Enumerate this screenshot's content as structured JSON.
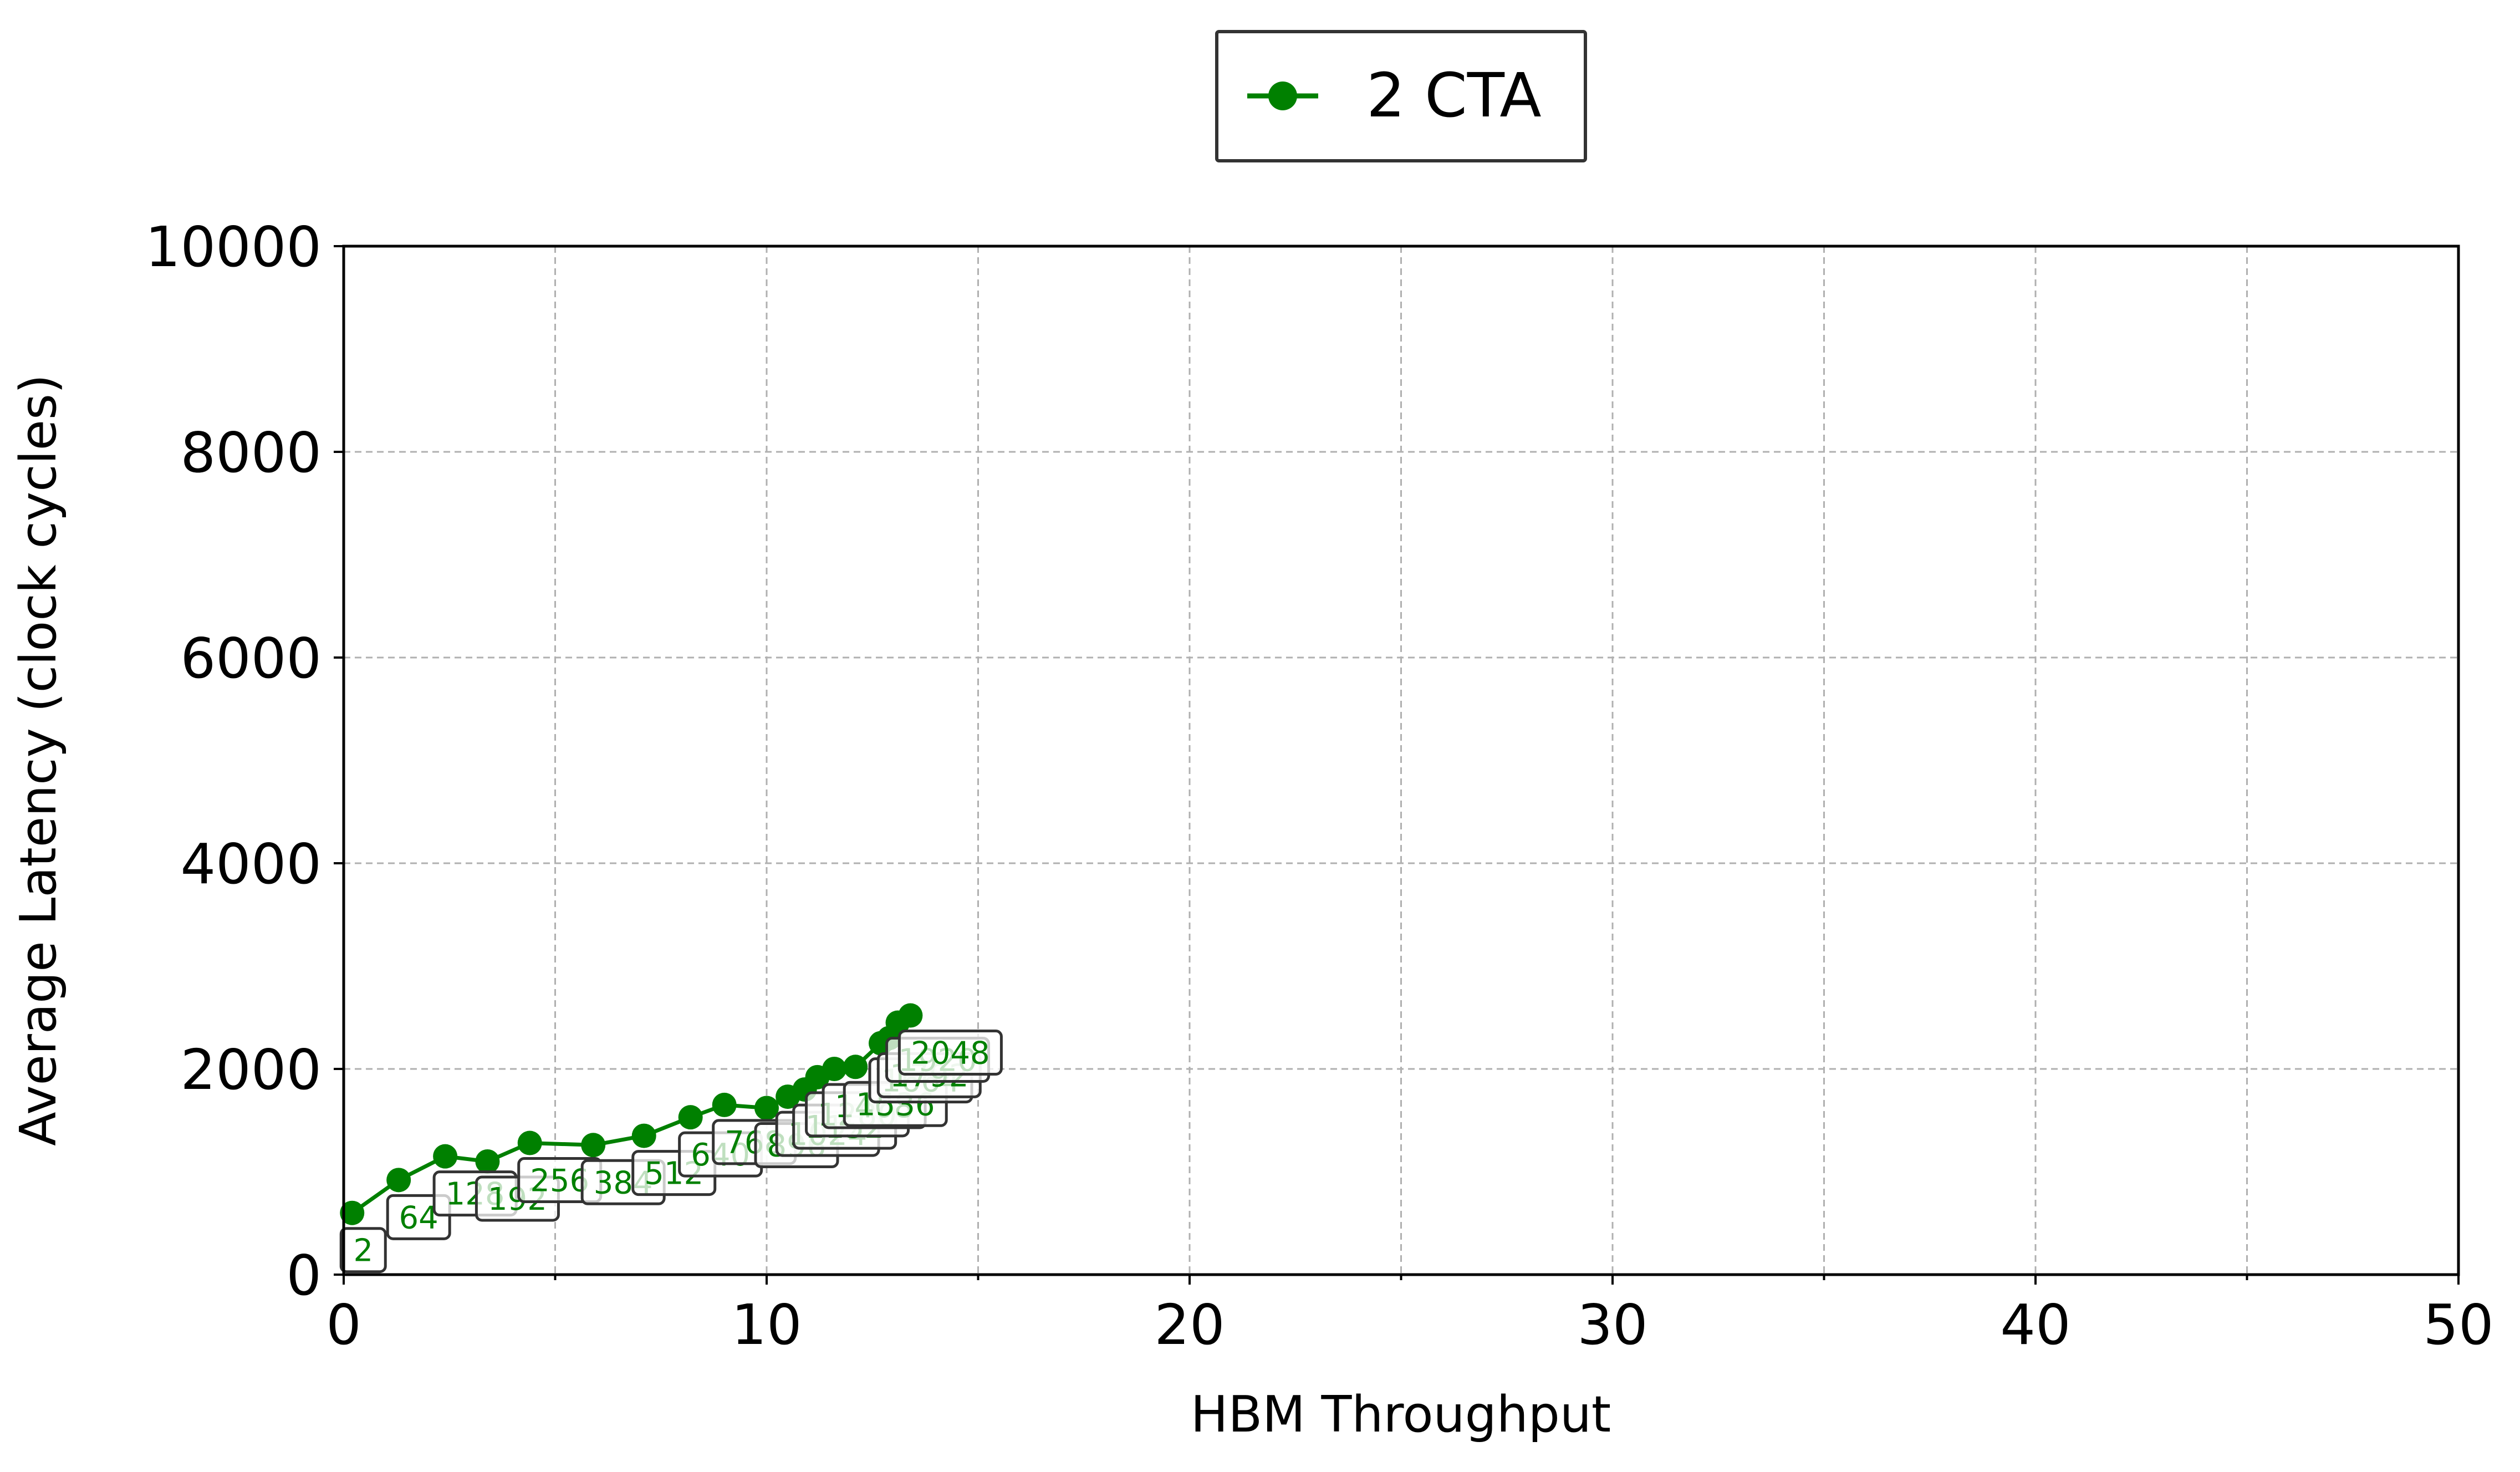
{
  "chart_data": {
    "type": "line",
    "title": "",
    "xlabel": "HBM Throughput",
    "ylabel": "Average Latency (clock cycles)",
    "xlim": [
      0,
      50
    ],
    "ylim": [
      0,
      10000
    ],
    "x_ticks": [
      0,
      10,
      20,
      30,
      40,
      50
    ],
    "y_ticks": [
      0,
      2000,
      4000,
      6000,
      8000,
      10000
    ],
    "x_tick_labels": [
      "0",
      "10",
      "20",
      "30",
      "40",
      "50"
    ],
    "y_tick_labels": [
      "0",
      "2000",
      "4000",
      "6000",
      "8000",
      "10000"
    ],
    "grid": true,
    "legend_position": "top-center",
    "series": [
      {
        "name": "2 CTA",
        "color": "#008000",
        "marker": "circle",
        "points": [
          {
            "x": 0.2,
            "y": 600,
            "label": "2"
          },
          {
            "x": 1.3,
            "y": 920,
            "label": "64"
          },
          {
            "x": 2.4,
            "y": 1150,
            "label": "128"
          },
          {
            "x": 3.4,
            "y": 1100,
            "label": "192"
          },
          {
            "x": 4.4,
            "y": 1280,
            "label": "256"
          },
          {
            "x": 5.9,
            "y": 1260,
            "label": "384"
          },
          {
            "x": 7.1,
            "y": 1350,
            "label": "512"
          },
          {
            "x": 8.2,
            "y": 1530,
            "label": "640"
          },
          {
            "x": 9.0,
            "y": 1650,
            "label": "768"
          },
          {
            "x": 10.0,
            "y": 1620,
            "label": "896"
          },
          {
            "x": 10.5,
            "y": 1730,
            "label": "1024"
          },
          {
            "x": 10.9,
            "y": 1800,
            "label": "1152"
          },
          {
            "x": 11.2,
            "y": 1920,
            "label": "1280"
          },
          {
            "x": 11.6,
            "y": 2000,
            "label": "1408"
          },
          {
            "x": 12.1,
            "y": 2020,
            "label": "1536"
          },
          {
            "x": 12.7,
            "y": 2250,
            "label": "1664"
          },
          {
            "x": 12.9,
            "y": 2300,
            "label": "1792"
          },
          {
            "x": 13.1,
            "y": 2450,
            "label": "1920"
          },
          {
            "x": 13.4,
            "y": 2520,
            "label": "2048"
          }
        ]
      }
    ]
  }
}
